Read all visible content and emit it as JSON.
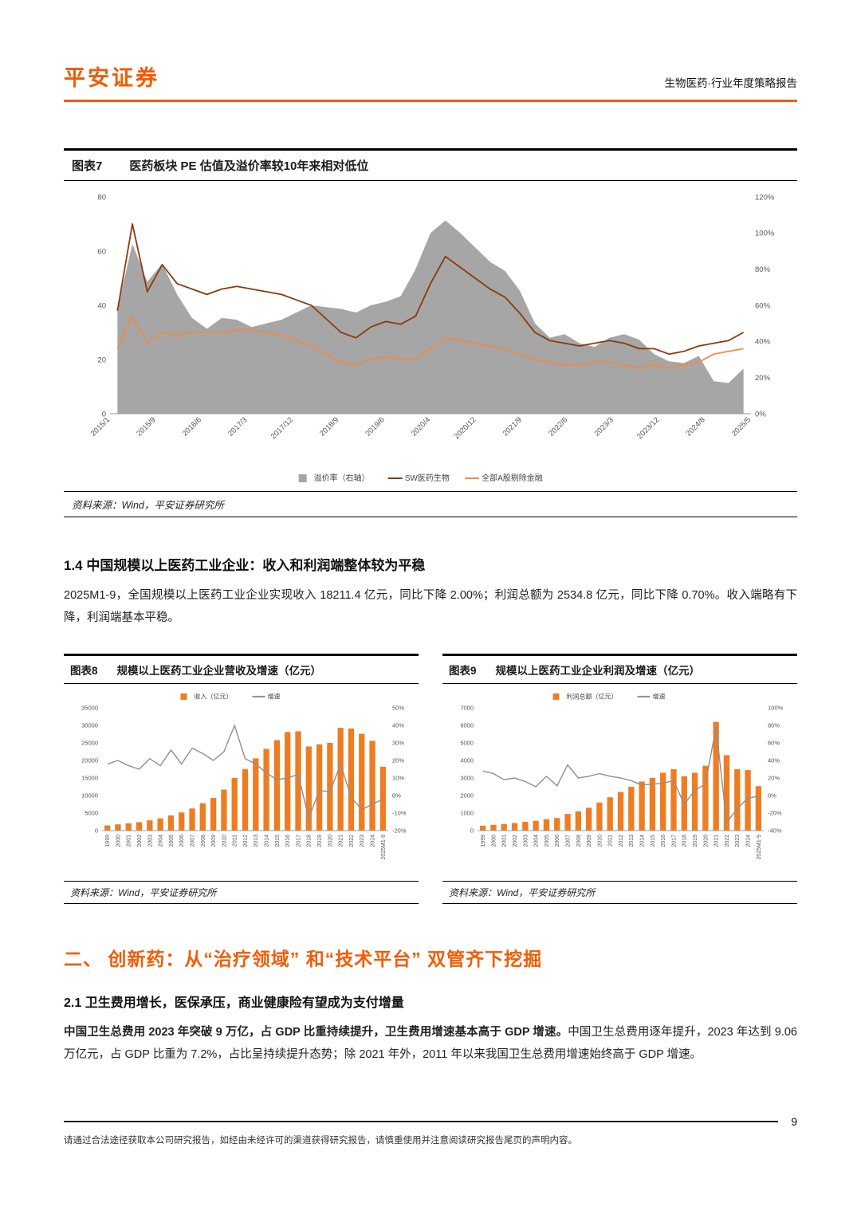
{
  "header": {
    "brand": "平安证券",
    "report_type": "生物医药·行业年度策略报告"
  },
  "figure7": {
    "label": "图表7",
    "title": "医药板块 PE 估值及溢价率较10年来相对低位",
    "source": "资料来源：Wind，平安证券研究所"
  },
  "section14": {
    "heading": "1.4 中国规模以上医药工业企业：收入和利润端整体较为平稳",
    "paragraph": "2025M1-9，全国规模以上医药工业企业实现收入 18211.4 亿元，同比下降 2.00%；利润总额为 2534.8 亿元，同比下降 0.70%。收入端略有下降，利润端基本平稳。"
  },
  "figure8": {
    "label": "图表8",
    "title": "规模以上医药工业企业营收及增速（亿元）",
    "source": "资料来源：Wind，平安证券研究所"
  },
  "figure9": {
    "label": "图表9",
    "title": "规模以上医药工业企业利润及增速（亿元）",
    "source": "资料来源：Wind，平安证券研究所"
  },
  "section2": {
    "heading": "二、 创新药：从“治疗领域” 和“技术平台” 双管齐下挖掘"
  },
  "section21": {
    "heading": "2.1 卫生费用增长，医保承压，商业健康险有望成为支付增量",
    "lead": "中国卫生总费用 2023 年突破 9 万亿，占 GDP 比重持续提升，卫生费用增速基本高于 GDP 增速。",
    "body": "中国卫生总费用逐年提升，2023 年达到 9.06 万亿元，占 GDP 比重为 7.2%，占比呈持续提升态势；除 2021 年外，2011 年以来我国卫生总费用增速始终高于 GDP 增速。"
  },
  "footer": {
    "disclaimer": "请通过合法途径获取本公司研究报告，如经由未经许可的渠道获得研究报告，请慎重使用并注意阅读研究报告尾页的声明内容。",
    "page_number": "9"
  },
  "colors": {
    "brand_orange": "#f25c05",
    "bar_orange": "#ee7d22",
    "sw_line_brown": "#8b3a0b",
    "a_share_orange": "#ef8b45",
    "premium_gray": "#a6a6a6",
    "growth_gray": "#8f8f8f"
  },
  "chart_data": [
    {
      "id": "fig7",
      "type": "area",
      "title": "医药板块 PE 估值及溢价率较10年来相对低位",
      "x": [
        "2015/1",
        "2015/4",
        "2015/7",
        "2015/10",
        "2016/1",
        "2016/4",
        "2016/7",
        "2016/10",
        "2017/1",
        "2017/4",
        "2017/7",
        "2017/10",
        "2018/1",
        "2018/4",
        "2018/7",
        "2018/10",
        "2019/1",
        "2019/4",
        "2019/7",
        "2019/10",
        "2020/1",
        "2020/4",
        "2020/7",
        "2020/10",
        "2021/1",
        "2021/4",
        "2021/7",
        "2021/10",
        "2022/1",
        "2022/4",
        "2022/7",
        "2022/10",
        "2023/1",
        "2023/4",
        "2023/7",
        "2023/10",
        "2024/1",
        "2024/4",
        "2024/7",
        "2024/10",
        "2025/1",
        "2025/4",
        "2025/7"
      ],
      "x_ticks": [
        "2015/1",
        "2015/9",
        "2016/6",
        "2017/3",
        "2017/12",
        "2018/9",
        "2019/6",
        "2020/4",
        "2020/12",
        "2021/9",
        "2022/6",
        "2023/3",
        "2023/12",
        "2024/8",
        "2025/5"
      ],
      "area": {
        "name": "溢价率（右轴）",
        "axis": "right",
        "color": "#a6a6a6",
        "values": [
          58,
          94,
          73,
          83,
          66,
          53,
          47,
          53,
          52,
          48,
          50,
          52,
          56,
          60,
          59,
          58,
          56,
          60,
          62,
          65,
          80,
          100,
          107,
          100,
          92,
          84,
          79,
          68,
          50,
          42,
          44,
          39,
          37,
          42,
          44,
          41,
          33,
          29,
          28,
          32,
          18,
          17,
          25
        ]
      },
      "lines": [
        {
          "name": "SW医药生物",
          "axis": "left",
          "color": "#8b3a0b",
          "values": [
            38,
            70,
            45,
            55,
            48,
            46,
            44,
            46,
            47,
            46,
            45,
            44,
            42,
            40,
            35,
            30,
            28,
            32,
            34,
            33,
            36,
            48,
            58,
            54,
            50,
            46,
            43,
            37,
            30,
            27,
            26,
            25,
            26,
            27,
            26,
            24,
            24,
            22,
            23,
            25,
            26,
            27,
            30
          ]
        },
        {
          "name": "全部A股剔除金融",
          "axis": "left",
          "color": "#ef8b45",
          "values": [
            24,
            36,
            26,
            30,
            29,
            30,
            30,
            30,
            31,
            31,
            30,
            29,
            27,
            25,
            22,
            19,
            18,
            20,
            21,
            20,
            20,
            24,
            28,
            27,
            26,
            25,
            24,
            22,
            20,
            19,
            18,
            18,
            19,
            19,
            18,
            17,
            18,
            17,
            18,
            19,
            22,
            23,
            24
          ]
        }
      ],
      "left_axis": {
        "min": 0,
        "max": 80,
        "step": 20,
        "suffix": ""
      },
      "right_axis": {
        "min": 0,
        "max": 120,
        "step": 20,
        "suffix": "%"
      },
      "legend_position": "bottom"
    },
    {
      "id": "fig8",
      "type": "bar",
      "title": "规模以上医药工业企业营收及增速（亿元）",
      "categories": [
        "1999",
        "2000",
        "2001",
        "2002",
        "2003",
        "2004",
        "2005",
        "2006",
        "2007",
        "2008",
        "2009",
        "2010",
        "2011",
        "2012",
        "2013",
        "2014",
        "2015",
        "2016",
        "2017",
        "2018",
        "2019",
        "2020",
        "2021",
        "2022",
        "2023",
        "2024",
        "2025M1-9"
      ],
      "bars": {
        "name": "收入（亿元）",
        "axis": "left",
        "color": "#ee7d22",
        "values": [
          1470,
          1780,
          2080,
          2400,
          2920,
          3480,
          4340,
          5180,
          6300,
          7800,
          9300,
          11700,
          15000,
          17500,
          20600,
          23300,
          25800,
          28100,
          28300,
          24000,
          24600,
          25000,
          29300,
          29100,
          27600,
          25600,
          18211.4
        ]
      },
      "lines": [
        {
          "name": "增速",
          "axis": "right",
          "color": "#8f8f8f",
          "values": [
            18,
            20,
            17,
            15,
            21,
            17,
            26,
            18,
            27,
            24,
            20,
            25,
            40,
            21,
            18,
            13,
            9,
            10,
            12,
            -13,
            3,
            2,
            18,
            -1,
            -8,
            -5,
            -2
          ]
        }
      ],
      "left_axis": {
        "min": 0,
        "max": 35000,
        "step": 5000,
        "suffix": ""
      },
      "right_axis": {
        "min": -20,
        "max": 50,
        "step": 10,
        "suffix": "%"
      },
      "legend_position": "top"
    },
    {
      "id": "fig9",
      "type": "bar",
      "title": "规模以上医药工业企业利润及增速（亿元）",
      "categories": [
        "1999",
        "2000",
        "2001",
        "2002",
        "2003",
        "2004",
        "2005",
        "2006",
        "2007",
        "2008",
        "2009",
        "2010",
        "2011",
        "2012",
        "2013",
        "2014",
        "2015",
        "2016",
        "2017",
        "2018",
        "2019",
        "2020",
        "2021",
        "2022",
        "2023",
        "2024",
        "2025M1-9"
      ],
      "bars": {
        "name": "利润总额（亿元）",
        "axis": "left",
        "color": "#ee7d22",
        "values": [
          280,
          330,
          380,
          430,
          500,
          560,
          650,
          720,
          950,
          1100,
          1300,
          1600,
          1900,
          2200,
          2500,
          2800,
          3000,
          3300,
          3500,
          3100,
          3300,
          3700,
          6200,
          4300,
          3500,
          3450,
          2534.8
        ]
      },
      "lines": [
        {
          "name": "增速",
          "axis": "right",
          "color": "#8f8f8f",
          "values": [
            28,
            25,
            18,
            20,
            16,
            10,
            22,
            11,
            35,
            20,
            22,
            25,
            22,
            20,
            17,
            12,
            13,
            14,
            17,
            -10,
            6,
            13,
            78,
            -31,
            -15,
            -3,
            -0.7
          ]
        }
      ],
      "left_axis": {
        "min": 0,
        "max": 7000,
        "step": 1000,
        "suffix": ""
      },
      "right_axis": {
        "min": -40,
        "max": 100,
        "step": 20,
        "suffix": "%"
      },
      "legend_position": "top"
    }
  ]
}
